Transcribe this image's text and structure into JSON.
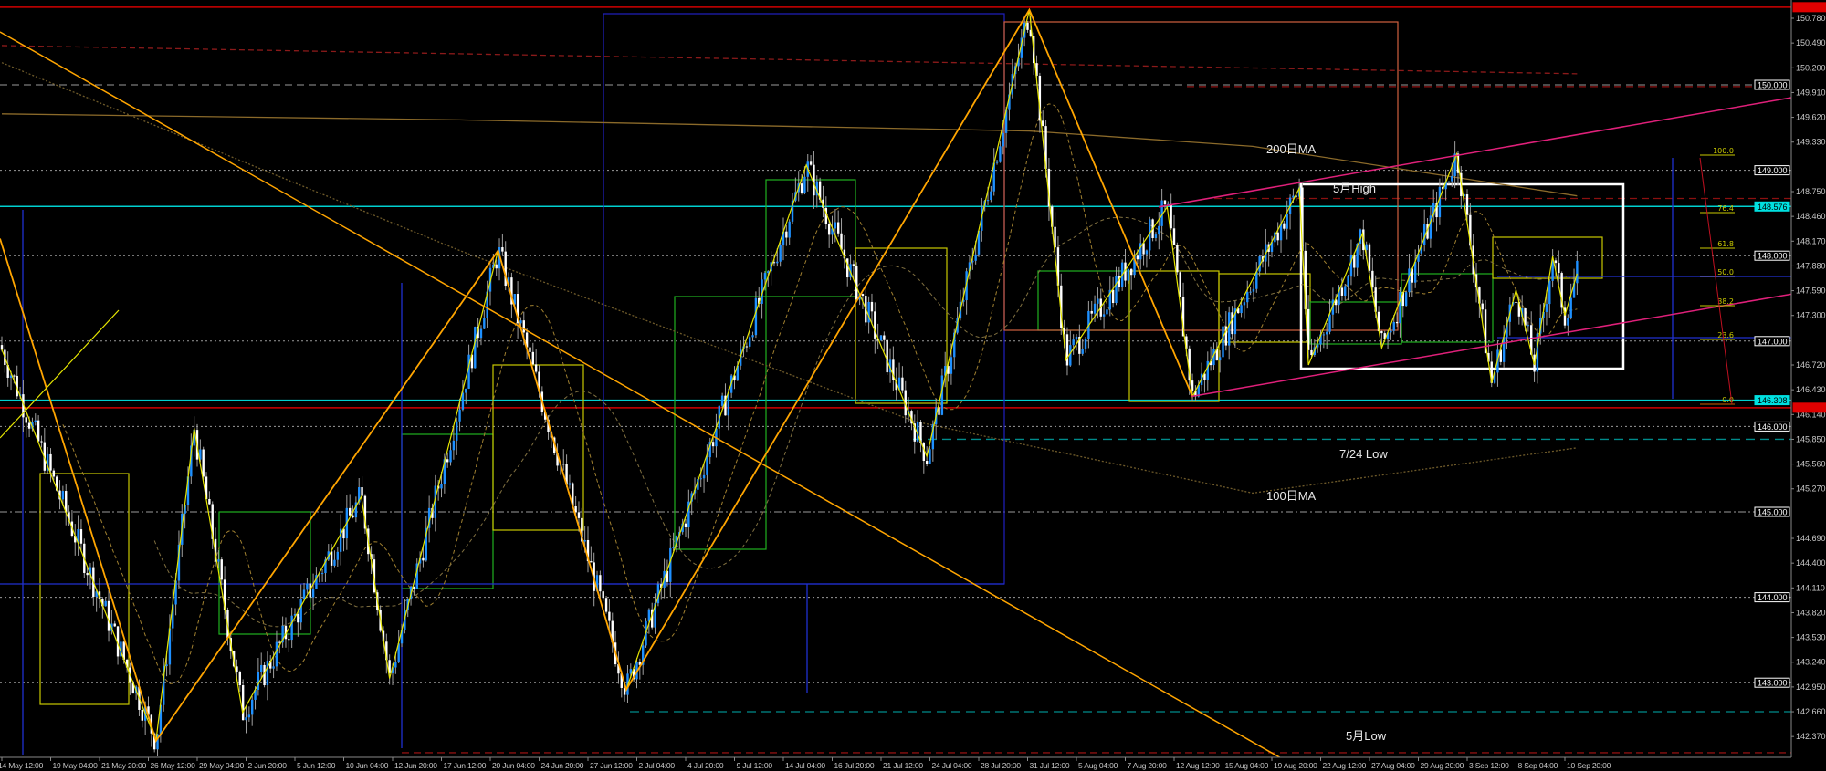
{
  "chart_data": {
    "type": "candlestick",
    "timeframe_note": "",
    "y_axis": {
      "ylim": [
        142.2,
        150.95
      ],
      "ticks": [
        "150.780",
        "150.490",
        "150.200",
        "149.910",
        "149.620",
        "149.330",
        "148.750",
        "148.460",
        "148.170",
        "147.880",
        "147.590",
        "147.300",
        "146.720",
        "146.430",
        "146.140",
        "145.850",
        "145.560",
        "145.270",
        "144.690",
        "144.400",
        "144.110",
        "143.820",
        "143.530",
        "143.240",
        "142.950",
        "142.660",
        "142.370"
      ],
      "level_tags": [
        {
          "text": "150.000",
          "price": 150.0,
          "style": "box-white",
          "line": "dashed-gray"
        },
        {
          "text": "149.000",
          "price": 149.0,
          "style": "box-white",
          "line": "dotted-gray"
        },
        {
          "text": "148.000",
          "price": 148.0,
          "style": "box-white",
          "line": "dotted-gray"
        },
        {
          "text": "147.000",
          "price": 147.0,
          "style": "box-white",
          "line": "dotted-gray"
        },
        {
          "text": "146.000",
          "price": 146.0,
          "style": "box-white",
          "line": "dotted-gray"
        },
        {
          "text": "145.000",
          "price": 145.0,
          "style": "box-white",
          "line": "dashdot-gray"
        },
        {
          "text": "144.000",
          "price": 144.0,
          "style": "box-white",
          "line": "dotted-gray"
        },
        {
          "text": "143.000",
          "price": 143.0,
          "style": "box-white",
          "line": "dotted-gray"
        },
        {
          "text": "148.576",
          "price": 148.576,
          "style": "box-cyan",
          "line": "solid-cyan"
        },
        {
          "text": "146.308",
          "price": 146.308,
          "style": "box-cyan",
          "line": "solid-cyan"
        },
        {
          "text": "",
          "price": 150.91,
          "style": "box-red",
          "line": "solid-red"
        },
        {
          "text": "",
          "price": 146.22,
          "style": "box-red",
          "line": "solid-red"
        }
      ]
    },
    "x_axis": {
      "tick_labels": [
        "14 May 12:00",
        "19 May 04:00",
        "21 May 20:00",
        "26 May 12:00",
        "29 May 04:00",
        "2 Jun 20:00",
        "5 Jun 12:00",
        "10 Jun 04:00",
        "12 Jun 20:00",
        "17 Jun 12:00",
        "20 Jun 04:00",
        "24 Jun 20:00",
        "27 Jun 12:00",
        "2 Jul 04:00",
        "4 Jul 20:00",
        "9 Jul 12:00",
        "14 Jul 04:00",
        "16 Jul 20:00",
        "21 Jul 12:00",
        "24 Jul 04:00",
        "28 Jul 20:00",
        "31 Jul 12:00",
        "5 Aug 04:00",
        "7 Aug 20:00",
        "12 Aug 12:00",
        "15 Aug 04:00",
        "19 Aug 20:00",
        "22 Aug 12:00",
        "27 Aug 04:00",
        "29 Aug 20:00",
        "3 Sep 12:00",
        "8 Sep 04:00",
        "10 Sep 20:00"
      ]
    },
    "price_pivots": [
      [
        "14 May 12:00",
        146.9
      ],
      [
        "26 May 22:00",
        142.32
      ],
      [
        "29 May 00:00",
        145.98
      ],
      [
        "2 Jun 12:00",
        142.65
      ],
      [
        "11 Jun 03:00",
        145.18
      ],
      [
        "12 Jun 16:00",
        143.05
      ],
      [
        "20 Jun 22:00",
        148.06
      ],
      [
        "1 Jul 04:00",
        142.92
      ],
      [
        "15 Jul 10:00",
        149.06
      ],
      [
        "24 Jul 00:00",
        145.65
      ],
      [
        "31 Jul 16:00",
        150.88
      ],
      [
        "4 Aug 04:00",
        146.78
      ],
      [
        "11 Aug 20:00",
        148.57
      ],
      [
        "13 Aug 12:00",
        146.35
      ],
      [
        "21 Aug 08:00",
        148.79
      ],
      [
        "21 Aug 20:00",
        146.72
      ],
      [
        "26 Aug 12:00",
        148.26
      ],
      [
        "27 Aug 20:00",
        146.92
      ],
      [
        "2 Sep 12:00",
        149.19
      ],
      [
        "5 Sep 20:00",
        146.51
      ],
      [
        "8 Sep 04:00",
        147.6
      ],
      [
        "9 Sep 04:00",
        146.72
      ],
      [
        "10 Sep 04:00",
        147.99
      ],
      [
        "10 Sep 20:00",
        147.3
      ],
      [
        "11 Sep 12:00",
        147.79
      ]
    ],
    "moving_averages": [
      {
        "label": "200日MA",
        "points": [
          [
            "14 May 12:00",
            149.66
          ],
          [
            "18 Jun 12:00",
            149.59
          ],
          [
            "31 Jul 16:00",
            149.46
          ],
          [
            "18 Aug 00:00",
            149.28
          ],
          [
            "11 Sep 12:00",
            148.7
          ]
        ],
        "color": "#8b6a2a"
      },
      {
        "label": "100日MA",
        "points": [
          [
            "14 May 12:00",
            150.26
          ],
          [
            "18 Jun 12:00",
            148.06
          ],
          [
            "23 Jul 08:00",
            146.06
          ],
          [
            "18 Aug 00:00",
            145.22
          ],
          [
            "11 Sep 12:00",
            145.75
          ]
        ],
        "color": "#6e5a2a"
      },
      {
        "label": "",
        "points": [
          [
            "14 May 12:00",
            150.46
          ],
          [
            "11 Sep 12:00",
            150.13
          ]
        ],
        "color": "#8b1a1a"
      }
    ],
    "annotations": [
      {
        "text": "200日MA"
      },
      {
        "text": "5月High"
      },
      {
        "text": "7/24 Low"
      },
      {
        "text": "100日MA"
      },
      {
        "text": "5月Low"
      }
    ],
    "fibonacci": {
      "levels": [
        "100.0",
        "76.4",
        "61.8",
        "50.0",
        "38.2",
        "23.6",
        "0.0"
      ],
      "color": "#c8c800"
    },
    "colors": {
      "background": "#000000",
      "bull_candle": "#1e90ff",
      "bear_candle": "#ffffff",
      "zigzag_major": "#ffa500",
      "zigzag_minor": "#e6e600",
      "channel": "#e0207a",
      "cyan_level": "#00d0d0",
      "red_level": "#d00000",
      "teal_dashed": "#008b8b"
    },
    "grid": false
  }
}
